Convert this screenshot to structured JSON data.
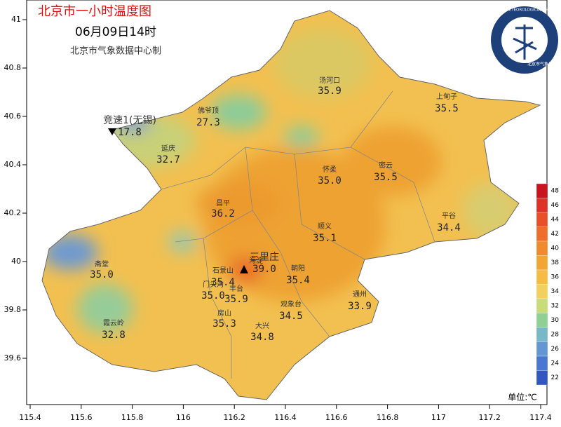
{
  "header": {
    "title": "北京市一小时温度图",
    "time": "06月09日14时",
    "producer": "北京市气象数据中心制"
  },
  "logo": {
    "text": "BEIJING METEOROLOGICAL SERVICE",
    "name": "北京市气象局"
  },
  "axes": {
    "x_ticks": [
      115.4,
      115.6,
      115.8,
      116,
      116.2,
      116.4,
      116.6,
      116.8,
      117,
      117.2,
      117.4
    ],
    "y_ticks": [
      41,
      40.8,
      40.6,
      40.4,
      40.2,
      40,
      39.8,
      39.6
    ]
  },
  "stations": [
    {
      "name": "汤河口",
      "temp": "35.9"
    },
    {
      "name": "上甸子",
      "temp": "35.5"
    },
    {
      "name": "竞速1(无锡)",
      "temp": "17.8"
    },
    {
      "name": "佛爷顶",
      "temp": "27.3"
    },
    {
      "name": "延庆",
      "temp": "32.7"
    },
    {
      "name": "怀柔",
      "temp": "35.0"
    },
    {
      "name": "密云",
      "temp": "35.5"
    },
    {
      "name": "昌平",
      "temp": "36.2"
    },
    {
      "name": "平谷",
      "temp": "34.4"
    },
    {
      "name": "顺义",
      "temp": "35.1"
    },
    {
      "name": "三里庄",
      "temp": "39.0"
    },
    {
      "name": "石景山",
      "temp": "35.4"
    },
    {
      "name": "朝阳",
      "temp": "35.4"
    },
    {
      "name": "门头沟",
      "temp": "35.0"
    },
    {
      "name": "丰台",
      "temp": "35.9"
    },
    {
      "name": "观象台",
      "temp": "34.5"
    },
    {
      "name": "通州",
      "temp": "33.9"
    },
    {
      "name": "房山",
      "temp": "35.3"
    },
    {
      "name": "大兴",
      "temp": "34.8"
    },
    {
      "name": "霞云岭",
      "temp": "32.8"
    },
    {
      "name": "斋堂",
      "temp": "35.0"
    },
    {
      "name": "海淀"
    }
  ],
  "colorbar": {
    "unit": "单位:℃",
    "ticks": [
      48,
      46,
      44,
      42,
      40,
      38,
      36,
      34,
      32,
      30,
      28,
      26,
      24,
      22
    ],
    "colors": [
      "#c8141e",
      "#dc3228",
      "#e8502a",
      "#ee6e2c",
      "#f08a2e",
      "#f2a434",
      "#f4bc44",
      "#f2d060",
      "#c8dc7c",
      "#90d094",
      "#78b8c8",
      "#6496d2",
      "#4a78d0",
      "#3258c0"
    ]
  }
}
